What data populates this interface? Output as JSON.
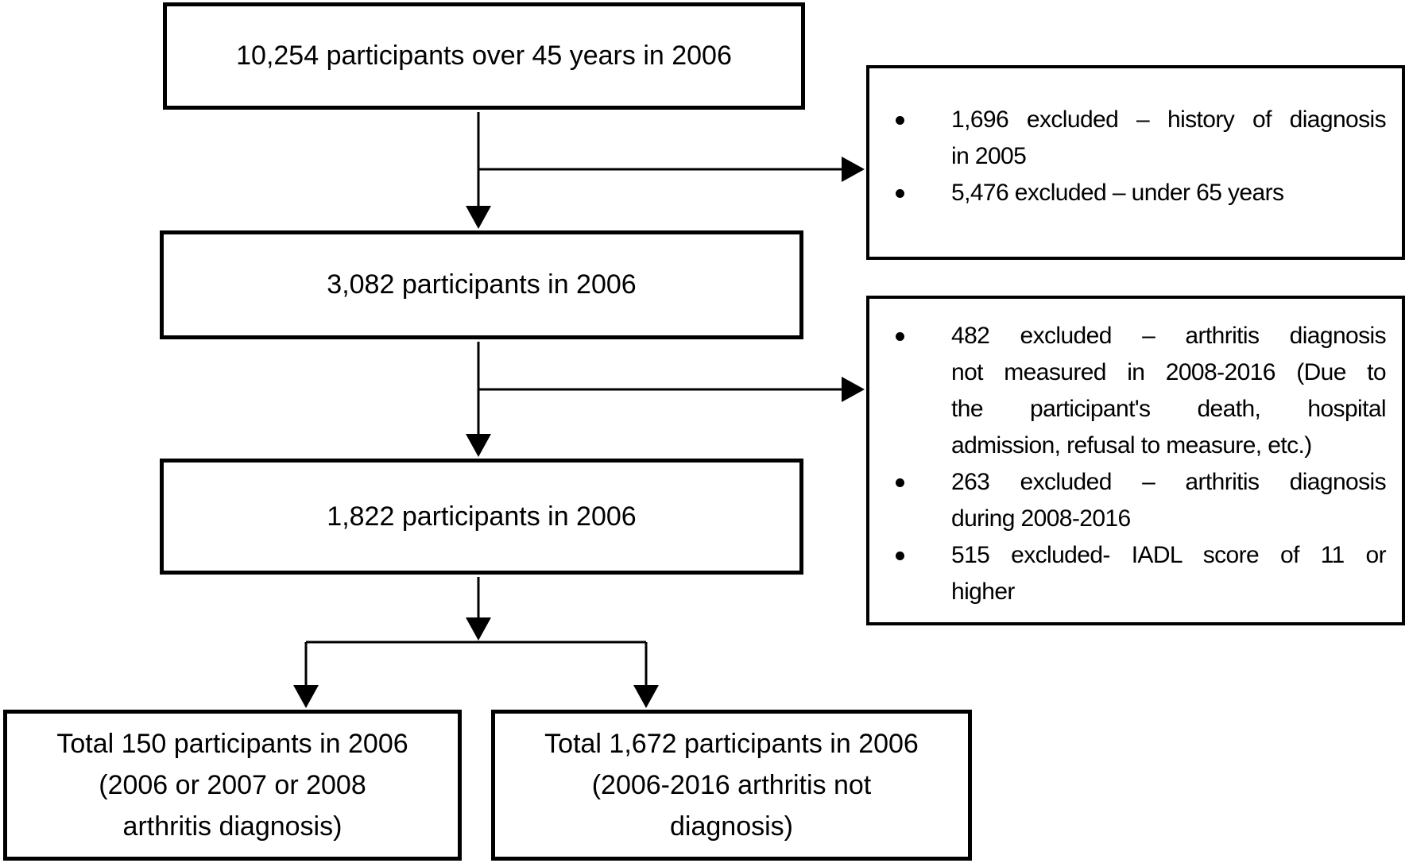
{
  "diagram": {
    "kind": "participant-flow-chart",
    "colors": {
      "line": "#000000",
      "background": "#ffffff",
      "text": "#000000"
    },
    "boxes": {
      "top": "10,254 participants over 45 years in 2006",
      "second": "3,082 participants in 2006",
      "third": "1,822 participants in 2006",
      "bottom_left_lines": [
        "Total 150 participants in 2006",
        "(2006 or 2007 or 2008",
        "arthritis diagnosis)"
      ],
      "bottom_right_lines": [
        "Total 1,672 participants in 2006",
        "(2006-2016 arthritis not",
        "diagnosis)"
      ]
    },
    "exclusion_box_1": {
      "items": [
        [
          "1,696 excluded – history of diagnosis",
          "in 2005"
        ],
        [
          "5,476 excluded – under 65 years"
        ]
      ]
    },
    "exclusion_box_2": {
      "items": [
        [
          "482 excluded – arthritis diagnosis",
          "not measured in 2008-2016 (Due to",
          "the participant's death, hospital",
          "admission, refusal to measure, etc.)"
        ],
        [
          "263 excluded – arthritis diagnosis",
          "during 2008-2016"
        ],
        [
          "515 excluded- IADL score of 11 or",
          "higher"
        ]
      ]
    }
  }
}
